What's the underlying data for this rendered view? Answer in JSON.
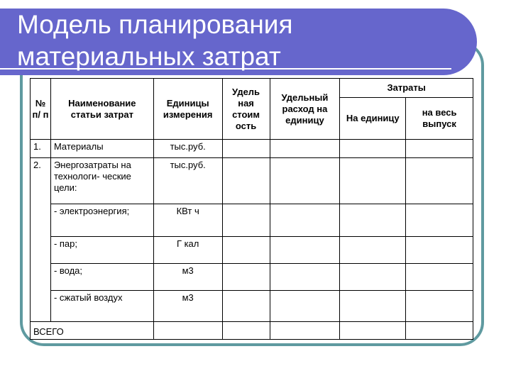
{
  "title": "Модель планирования\nматериальных затрат",
  "colors": {
    "title_band": "#6666cc",
    "frame": "#5f9aa0"
  },
  "table": {
    "headers": {
      "num": "№ п/ п",
      "name": "Наименование статьи затрат",
      "unit": "Единицы измерения",
      "unit_cost": "Удель ная стоим ость",
      "unit_consumption": "Удельный расход на единицу",
      "costs": "Затраты",
      "per_unit": "На единицу",
      "total_output": "на весь выпуск"
    },
    "rows": [
      {
        "num": "1.",
        "name": "Материалы",
        "unit": "тыс.руб."
      },
      {
        "num": "2.",
        "name": "Энергозатраты на технологи- ческие цели:",
        "unit": "тыс.руб."
      },
      {
        "num": "",
        "name": "- электроэнергия;",
        "unit": "КВт ч"
      },
      {
        "num": "",
        "name": "- пар;",
        "unit": "Г кал"
      },
      {
        "num": "",
        "name": "- вода;",
        "unit": "м3"
      },
      {
        "num": "",
        "name": "- сжатый воздух",
        "unit": "м3"
      }
    ],
    "total_label": "ВСЕГО"
  }
}
